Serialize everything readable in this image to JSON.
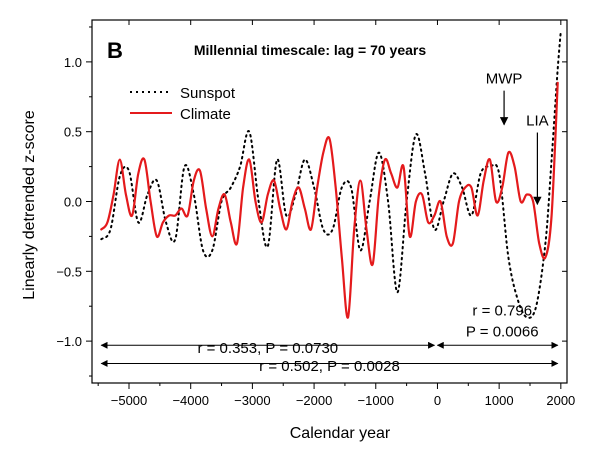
{
  "chart_data": {
    "type": "line",
    "panel_label": "B",
    "title": "Millennial timescale: lag = 70 years",
    "xlabel": "Calendar year",
    "ylabel": "Linearly detrended z-score",
    "xlim": [
      -5600,
      2100
    ],
    "ylim": [
      -1.3,
      1.3
    ],
    "xticks": [
      -5000,
      -4000,
      -3000,
      -2000,
      -1000,
      0,
      1000,
      2000
    ],
    "xtick_labels": [
      "−5000",
      "−4000",
      "−3000",
      "−2000",
      "−1000",
      "0",
      "1000",
      "2000"
    ],
    "yticks": [
      -1.0,
      -0.5,
      0.0,
      0.5,
      1.0
    ],
    "ytick_labels": [
      "−1.0",
      "−0.5",
      "0.0",
      "0.5",
      "1.0"
    ],
    "legend_position": "top-left",
    "series": [
      {
        "name": "Sunspot",
        "color": "#000000",
        "style": "dotted",
        "x": [
          -5450,
          -5300,
          -5150,
          -5000,
          -4850,
          -4700,
          -4550,
          -4400,
          -4250,
          -4100,
          -3950,
          -3800,
          -3650,
          -3500,
          -3350,
          -3200,
          -3050,
          -2900,
          -2750,
          -2600,
          -2450,
          -2300,
          -2150,
          -2000,
          -1850,
          -1700,
          -1550,
          -1400,
          -1250,
          -1100,
          -950,
          -800,
          -650,
          -500,
          -350,
          -200,
          -50,
          100,
          250,
          400,
          550,
          700,
          850,
          1000,
          1150,
          1300,
          1450,
          1600,
          1750,
          1850,
          1950,
          2000
        ],
        "y": [
          -0.27,
          -0.2,
          0.18,
          0.22,
          -0.15,
          0.05,
          0.15,
          -0.15,
          -0.27,
          0.25,
          0.05,
          -0.35,
          -0.35,
          0.0,
          0.1,
          0.25,
          0.5,
          0.0,
          -0.32,
          0.3,
          -0.1,
          0.05,
          0.3,
          0.1,
          -0.2,
          -0.2,
          0.1,
          0.1,
          -0.35,
          0.0,
          0.35,
          0.0,
          -0.65,
          0.0,
          0.48,
          0.2,
          -0.2,
          0.0,
          0.2,
          0.1,
          -0.1,
          0.2,
          0.25,
          0.2,
          -0.4,
          -0.7,
          -0.83,
          -0.75,
          -0.3,
          0.3,
          0.95,
          1.22
        ]
      },
      {
        "name": "Climate",
        "color": "#e41a1c",
        "style": "solid",
        "x": [
          -5450,
          -5350,
          -5250,
          -5150,
          -5050,
          -4950,
          -4850,
          -4750,
          -4650,
          -4550,
          -4450,
          -4350,
          -4250,
          -4150,
          -4050,
          -3950,
          -3850,
          -3750,
          -3650,
          -3550,
          -3450,
          -3350,
          -3250,
          -3150,
          -3050,
          -2950,
          -2850,
          -2750,
          -2650,
          -2550,
          -2450,
          -2350,
          -2250,
          -2150,
          -2050,
          -1950,
          -1850,
          -1750,
          -1650,
          -1550,
          -1450,
          -1350,
          -1250,
          -1150,
          -1050,
          -950,
          -850,
          -750,
          -650,
          -550,
          -450,
          -350,
          -250,
          -150,
          -50,
          50,
          150,
          250,
          350,
          450,
          550,
          650,
          750,
          850,
          950,
          1050,
          1150,
          1250,
          1350,
          1450,
          1550,
          1650,
          1750,
          1850,
          1950
        ],
        "y": [
          -0.2,
          -0.15,
          0.05,
          0.3,
          0.05,
          -0.1,
          0.2,
          0.3,
          0.0,
          -0.25,
          -0.15,
          -0.1,
          -0.1,
          -0.05,
          -0.1,
          0.15,
          0.22,
          -0.05,
          -0.25,
          -0.05,
          0.05,
          -0.15,
          -0.3,
          0.1,
          0.3,
          0.0,
          -0.15,
          0.05,
          0.15,
          -0.05,
          -0.2,
          0.0,
          0.1,
          -0.05,
          -0.2,
          0.1,
          0.35,
          0.45,
          0.1,
          -0.4,
          -0.83,
          -0.2,
          0.15,
          -0.2,
          -0.45,
          0.05,
          0.3,
          0.2,
          0.1,
          0.25,
          -0.25,
          0.0,
          0.05,
          -0.15,
          -0.1,
          0.0,
          -0.25,
          -0.3,
          0.0,
          0.1,
          0.1,
          -0.1,
          0.15,
          0.3,
          0.0,
          0.1,
          0.35,
          0.25,
          0.0,
          0.05,
          0.0,
          -0.3,
          -0.4,
          -0.1,
          0.85
        ]
      }
    ],
    "annotations": [
      {
        "text": "MWP",
        "x": 1080,
        "y": 0.88,
        "arrow_to_y": 0.55
      },
      {
        "text": "LIA",
        "x": 1620,
        "y": 0.58,
        "arrow_to_y": -0.02
      },
      {
        "text": "r = 0.353, P = 0.0730",
        "x_from": -5450,
        "x_to": -50,
        "y": -1.05
      },
      {
        "text": "r = 0.796",
        "x": 1050,
        "y": -0.78
      },
      {
        "text": "P = 0.0066",
        "x": 1050,
        "y": -0.93
      },
      {
        "text": "r = 0.502, P = 0.0028",
        "x_from": -5450,
        "x_to": 1950,
        "y": -1.18
      }
    ],
    "spans": [
      {
        "label": "r = 0.353, P = 0.0730",
        "from": -5450,
        "to": -50,
        "y": -1.03
      },
      {
        "label": "r = 0.796 / P = 0.0066",
        "from": 0,
        "to": 1950,
        "y": -1.03
      },
      {
        "label": "r = 0.502, P = 0.0028",
        "from": -5450,
        "to": 1950,
        "y": -1.16
      }
    ]
  }
}
